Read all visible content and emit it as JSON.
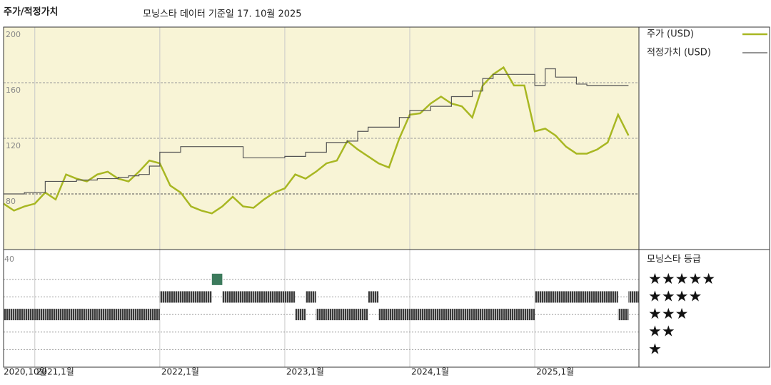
{
  "chart_data": [
    {
      "type": "line",
      "title": "주가/적정가치",
      "subtitle": "모닝스타 데이터 기준일 17. 10월 2025",
      "x": [
        "2020-10",
        "2020-11",
        "2020-12",
        "2021-01",
        "2021-02",
        "2021-03",
        "2021-04",
        "2021-05",
        "2021-06",
        "2021-07",
        "2021-08",
        "2021-09",
        "2021-10",
        "2021-11",
        "2021-12",
        "2022-01",
        "2022-02",
        "2022-03",
        "2022-04",
        "2022-05",
        "2022-06",
        "2022-07",
        "2022-08",
        "2022-09",
        "2022-10",
        "2022-11",
        "2022-12",
        "2023-01",
        "2023-02",
        "2023-03",
        "2023-04",
        "2023-05",
        "2023-06",
        "2023-07",
        "2023-08",
        "2023-09",
        "2023-10",
        "2023-11",
        "2023-12",
        "2024-01",
        "2024-02",
        "2024-03",
        "2024-04",
        "2024-05",
        "2024-06",
        "2024-07",
        "2024-08",
        "2024-09",
        "2024-10",
        "2024-11",
        "2024-12",
        "2025-01",
        "2025-02",
        "2025-03",
        "2025-04",
        "2025-05",
        "2025-06",
        "2025-07",
        "2025-08",
        "2025-09",
        "2025-10"
      ],
      "series": [
        {
          "name": "주가 (USD)",
          "color": "#a8b722",
          "step": false,
          "values": [
            73,
            68,
            71,
            73,
            81,
            76,
            94,
            91,
            89,
            94,
            96,
            91,
            89,
            96,
            104,
            102,
            86,
            81,
            71,
            68,
            66,
            71,
            78,
            71,
            70,
            76,
            81,
            84,
            94,
            91,
            96,
            102,
            104,
            118,
            112,
            107,
            102,
            99,
            120,
            137,
            138,
            145,
            150,
            145,
            143,
            135,
            158,
            166,
            171,
            158,
            158,
            125,
            127,
            122,
            114,
            109,
            109,
            112,
            117,
            137,
            122
          ]
        },
        {
          "name": "적정가치 (USD)",
          "color": "#555555",
          "step": true,
          "values": [
            80,
            80,
            81,
            81,
            89,
            89,
            89,
            90,
            90,
            91,
            91,
            92,
            93,
            94,
            100,
            110,
            110,
            114,
            114,
            114,
            114,
            114,
            114,
            106,
            106,
            106,
            106,
            107,
            107,
            110,
            110,
            117,
            117,
            118,
            125,
            128,
            128,
            128,
            135,
            140,
            140,
            143,
            143,
            150,
            150,
            154,
            163,
            166,
            166,
            166,
            166,
            158,
            170,
            164,
            164,
            159,
            158,
            158,
            158,
            158,
            158
          ]
        }
      ],
      "xlim": [
        "2020-10",
        "2025-11"
      ],
      "xticks": [
        {
          "value": "2020-10",
          "label": "2020,10월"
        },
        {
          "value": "2021-01",
          "label": "2021,1월"
        },
        {
          "value": "2022-01",
          "label": "2022,1월"
        },
        {
          "value": "2023-01",
          "label": "2023,1월"
        },
        {
          "value": "2024-01",
          "label": "2024,1월"
        },
        {
          "value": "2025-01",
          "label": "2025,1월"
        }
      ],
      "ylim": [
        40,
        200
      ],
      "yticks": [
        80,
        120,
        160,
        200
      ],
      "grid": true,
      "background": "#f8f4d6"
    },
    {
      "type": "rating",
      "title": "모닝스타 등급",
      "corner_label": "40",
      "color": "#3a3a3a",
      "top_color": "#3c7a5c",
      "x": [
        "2020-10",
        "2020-11",
        "2020-12",
        "2021-01",
        "2021-02",
        "2021-03",
        "2021-04",
        "2021-05",
        "2021-06",
        "2021-07",
        "2021-08",
        "2021-09",
        "2021-10",
        "2021-11",
        "2021-12",
        "2022-01",
        "2022-02",
        "2022-03",
        "2022-04",
        "2022-05",
        "2022-06",
        "2022-07",
        "2022-08",
        "2022-09",
        "2022-10",
        "2022-11",
        "2022-12",
        "2023-01",
        "2023-02",
        "2023-03",
        "2023-04",
        "2023-05",
        "2023-06",
        "2023-07",
        "2023-08",
        "2023-09",
        "2023-10",
        "2023-11",
        "2023-12",
        "2024-01",
        "2024-02",
        "2024-03",
        "2024-04",
        "2024-05",
        "2024-06",
        "2024-07",
        "2024-08",
        "2024-09",
        "2024-10",
        "2024-11",
        "2024-12",
        "2025-01",
        "2025-02",
        "2025-03",
        "2025-04",
        "2025-05",
        "2025-06",
        "2025-07",
        "2025-08",
        "2025-09",
        "2025-10"
      ],
      "values": [
        3,
        3,
        3,
        3,
        3,
        3,
        3,
        3,
        3,
        3,
        3,
        3,
        3,
        3,
        3,
        4,
        4,
        4,
        4,
        4,
        5,
        4,
        4,
        4,
        4,
        4,
        4,
        4,
        3,
        4,
        3,
        3,
        3,
        3,
        3,
        4,
        3,
        3,
        3,
        3,
        3,
        3,
        3,
        3,
        3,
        3,
        3,
        3,
        3,
        3,
        3,
        4,
        4,
        4,
        4,
        4,
        4,
        4,
        4,
        3,
        4
      ],
      "ylim": [
        0,
        6.7
      ],
      "yticks": [
        {
          "value": 5,
          "label": "★★★★★"
        },
        {
          "value": 4,
          "label": "★★★★"
        },
        {
          "value": 3,
          "label": "★★★"
        },
        {
          "value": 2,
          "label": "★★"
        },
        {
          "value": 1,
          "label": "★"
        }
      ]
    }
  ]
}
